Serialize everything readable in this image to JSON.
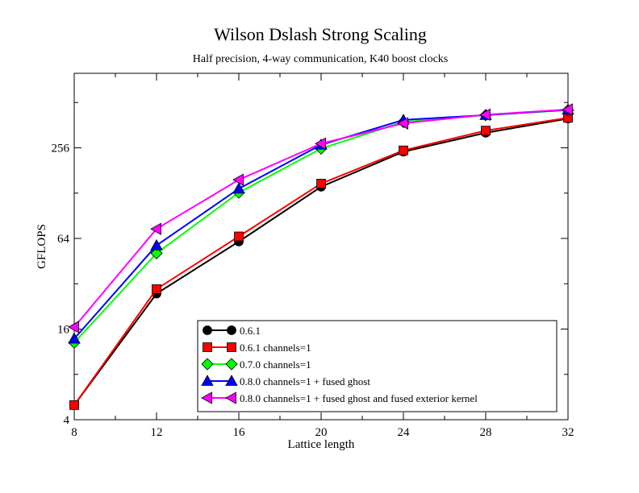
{
  "chart_data": {
    "type": "line",
    "title": "Wilson Dslash Strong Scaling",
    "subtitle": "Half precision, 4-way communication, K40 boost clocks",
    "xlabel": "Lattice length",
    "ylabel": "GFLOPS",
    "x": [
      8,
      12,
      16,
      20,
      24,
      28,
      32
    ],
    "xlim": [
      8,
      32
    ],
    "xticks": [
      "8",
      "12",
      "16",
      "20",
      "24",
      "28",
      "32"
    ],
    "yscale": "log2",
    "ylim": [
      4,
      800
    ],
    "yticks": [
      4,
      16,
      64,
      256
    ],
    "ytick_labels": [
      "4",
      "16",
      "64",
      "256"
    ],
    "legend_position": "bottom-right",
    "series": [
      {
        "name": "0.6.1",
        "color": "#000000",
        "marker": "circle",
        "values": [
          5,
          27.5,
          61,
          141,
          241,
          322,
          400
        ]
      },
      {
        "name": "0.6.1 channels=1",
        "color": "#ff0000",
        "marker": "square",
        "values": [
          5,
          29.5,
          66,
          148,
          246,
          333,
          405
        ]
      },
      {
        "name": "0.7.0 channels=1",
        "color": "#00ff00",
        "marker": "diamond",
        "values": [
          13,
          51,
          129,
          253,
          380,
          422,
          455
        ]
      },
      {
        "name": "0.8.0 channels=1 + fused ghost",
        "color": "#0000ff",
        "marker": "triangle-up",
        "values": [
          13.8,
          57.5,
          137,
          268,
          392,
          422,
          458
        ]
      },
      {
        "name": "0.8.0 channels=1 + fused ghost and fused exterior kernel",
        "color": "#ff00ff",
        "marker": "triangle-left",
        "values": [
          16.5,
          74,
          157,
          273,
          372,
          425,
          460
        ]
      }
    ]
  }
}
